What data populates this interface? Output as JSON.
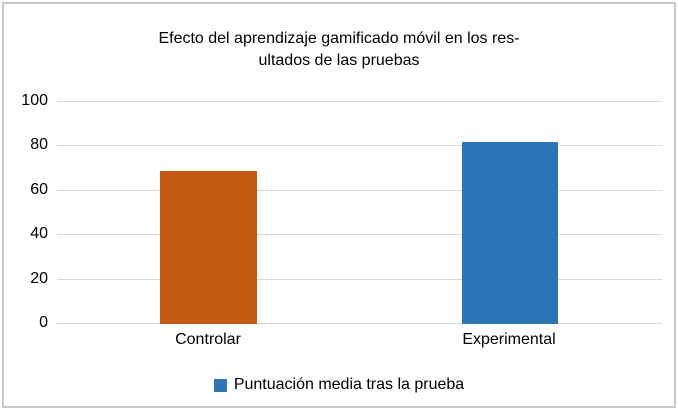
{
  "chart_data": {
    "type": "bar",
    "title": "Efecto del aprendizaje gamificado móvil en los resultados de las pruebas",
    "title_lines": [
      "Efecto del aprendizaje gamificado móvil en los res-",
      "ultados de las pruebas"
    ],
    "categories": [
      "Controlar",
      "Experimental"
    ],
    "series": [
      {
        "name": "Puntuación media tras la prueba",
        "values": [
          69,
          82
        ]
      }
    ],
    "bar_colors": [
      "#C55A11",
      "#2E75B6"
    ],
    "ylim": [
      0,
      100
    ],
    "yticks": [
      100,
      80,
      60,
      40,
      20,
      0
    ],
    "grid": true,
    "gridline_color": "#D9D9D9",
    "legend_position": "bottom",
    "legend_marker_color": "#2E75B6"
  }
}
